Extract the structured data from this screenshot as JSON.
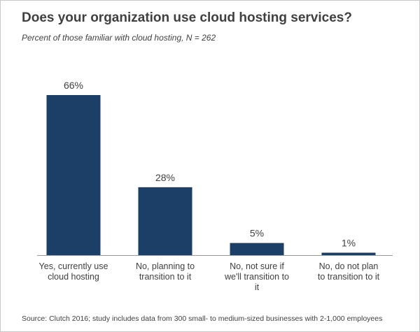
{
  "chart_data": {
    "type": "bar",
    "title": "Does your organization use cloud hosting services?",
    "subtitle": "Percent of those familiar with cloud hosting, N = 262",
    "categories": [
      [
        "Yes, currently use",
        "cloud hosting"
      ],
      [
        "No, planning to",
        "transition to it"
      ],
      [
        "No, not sure if",
        "we'll transition to",
        "it"
      ],
      [
        "No, do not plan",
        "to transition to it"
      ]
    ],
    "values": [
      66,
      28,
      5,
      1
    ],
    "data_labels": [
      "66%",
      "28%",
      "5%",
      "1%"
    ],
    "ylim": [
      0,
      66
    ],
    "grid": false,
    "legend": "none",
    "bar_color": "#1b3f66",
    "source": "Source: Clutch 2016; study includes data from 300 small- to medium-sized businesses with 2-1,000 employees"
  }
}
